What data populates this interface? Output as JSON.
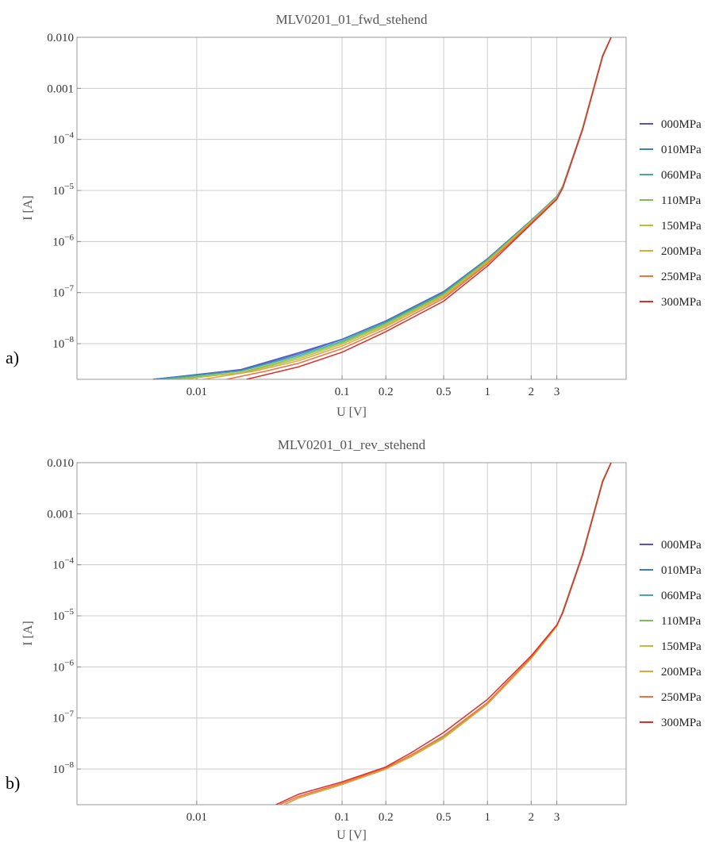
{
  "chart_data": [
    {
      "type": "line",
      "panel_label": "a)",
      "title": "MLV0201_01_fwd_stehend",
      "xlabel": "U [V]",
      "ylabel": "I [A]",
      "x_scale": "log",
      "y_scale": "log",
      "xlim": [
        0.0015,
        9
      ],
      "ylim": [
        2e-09,
        0.01
      ],
      "x_ticks": [
        {
          "value": 0.01,
          "label": "0.01"
        },
        {
          "value": 0.1,
          "label": "0.1"
        },
        {
          "value": 0.2,
          "label": "0.2"
        },
        {
          "value": 0.5,
          "label": "0.5"
        },
        {
          "value": 1,
          "label": "1"
        },
        {
          "value": 2,
          "label": "2"
        },
        {
          "value": 3,
          "label": "3"
        }
      ],
      "y_ticks": [
        {
          "value": 1e-08,
          "base": "10",
          "exp": "−8"
        },
        {
          "value": 1e-07,
          "base": "10",
          "exp": "−7"
        },
        {
          "value": 1e-06,
          "base": "10",
          "exp": "−6"
        },
        {
          "value": 1e-05,
          "base": "10",
          "exp": "−5"
        },
        {
          "value": 0.0001,
          "base": "10",
          "exp": "−4"
        },
        {
          "value": 0.001,
          "base": "0.001",
          "exp": ""
        },
        {
          "value": 0.01,
          "base": "0.010",
          "exp": ""
        }
      ],
      "grid": true,
      "legend_position": "right",
      "series": [
        {
          "name": "000MPa",
          "color": "#5b4fc9",
          "x": [
            0.005,
            0.02,
            0.05,
            0.1,
            0.2,
            0.5,
            1,
            2,
            3,
            3.3,
            4.5,
            6.2,
            7.1
          ],
          "y": [
            2e-09,
            3.1e-09,
            6.6e-09,
            1.22e-08,
            2.8e-08,
            1.05e-07,
            4.6e-07,
            2.6e-06,
            7.6e-06,
            1.22e-05,
            0.00016,
            0.0044,
            0.01
          ]
        },
        {
          "name": "010MPa",
          "color": "#3d7ebf",
          "x": [
            0.005,
            0.02,
            0.05,
            0.1,
            0.2,
            0.5,
            1,
            2,
            3,
            3.3,
            4.5,
            6.2,
            7.1
          ],
          "y": [
            2e-09,
            3e-09,
            6.2e-09,
            1.2e-08,
            2.75e-08,
            1.03e-07,
            4.55e-07,
            2.6e-06,
            7.6e-06,
            1.22e-05,
            0.00016,
            0.0044,
            0.01
          ]
        },
        {
          "name": "060MPa",
          "color": "#4aa89a",
          "x": [
            0.0055,
            0.02,
            0.05,
            0.1,
            0.2,
            0.5,
            1,
            2,
            3,
            3.3,
            4.5,
            6.2,
            7.1
          ],
          "y": [
            2e-09,
            2.9e-09,
            5.8e-09,
            1.12e-08,
            2.6e-08,
            9.8e-08,
            4.4e-07,
            2.55e-06,
            7.5e-06,
            1.2e-05,
            0.000162,
            0.0045,
            0.01
          ]
        },
        {
          "name": "110MPa",
          "color": "#7cbd5c",
          "x": [
            0.0065,
            0.02,
            0.05,
            0.1,
            0.2,
            0.5,
            1,
            2,
            3,
            3.3,
            4.5,
            6.2,
            7.1
          ],
          "y": [
            2e-09,
            2.7e-09,
            5.4e-09,
            1.05e-08,
            2.45e-08,
            9.3e-08,
            4.25e-07,
            2.5e-06,
            7.3e-06,
            1.18e-05,
            0.000158,
            0.0044,
            0.01
          ]
        },
        {
          "name": "150MPa",
          "color": "#b8bf3c",
          "x": [
            0.008,
            0.022,
            0.05,
            0.1,
            0.2,
            0.5,
            1,
            2,
            3,
            3.3,
            4.5,
            6.2,
            7.1
          ],
          "y": [
            2e-09,
            2.8e-09,
            5e-09,
            9.8e-09,
            2.3e-08,
            8.8e-08,
            4.05e-07,
            2.45e-06,
            7.2e-06,
            1.17e-05,
            0.000156,
            0.0043,
            0.01
          ]
        },
        {
          "name": "200MPa",
          "color": "#e0a63a",
          "x": [
            0.011,
            0.025,
            0.05,
            0.1,
            0.2,
            0.5,
            1,
            2,
            3,
            3.3,
            4.5,
            6.2,
            7.1
          ],
          "y": [
            2e-09,
            2.9e-09,
            4.6e-09,
            9e-09,
            2.15e-08,
            8.3e-08,
            3.85e-07,
            2.35e-06,
            7e-06,
            1.15e-05,
            0.000154,
            0.0043,
            0.01
          ]
        },
        {
          "name": "250MPa",
          "color": "#ef7040",
          "x": [
            0.016,
            0.03,
            0.05,
            0.1,
            0.2,
            0.5,
            1,
            2,
            3,
            3.3,
            4.5,
            6.2,
            7.1
          ],
          "y": [
            2e-09,
            2.9e-09,
            4.1e-09,
            8e-09,
            1.95e-08,
            7.7e-08,
            3.65e-07,
            2.3e-06,
            6.9e-06,
            1.14e-05,
            0.000153,
            0.0042,
            0.01
          ]
        },
        {
          "name": "300MPa",
          "color": "#d8302a",
          "x": [
            0.022,
            0.05,
            0.1,
            0.2,
            0.5,
            1,
            2,
            3,
            3.3,
            4.5,
            6.2,
            7.1
          ],
          "y": [
            2e-09,
            3.5e-09,
            6.8e-09,
            1.72e-08,
            6.8e-08,
            3.3e-07,
            2.2e-06,
            6.7e-06,
            1.12e-05,
            0.00015,
            0.0042,
            0.01
          ]
        }
      ]
    },
    {
      "type": "line",
      "panel_label": "b)",
      "title": "MLV0201_01_rev_stehend",
      "xlabel": "U [V]",
      "ylabel": "I [A]",
      "x_scale": "log",
      "y_scale": "log",
      "xlim": [
        0.0015,
        9
      ],
      "ylim": [
        2e-09,
        0.01
      ],
      "x_ticks": [
        {
          "value": 0.01,
          "label": "0.01"
        },
        {
          "value": 0.1,
          "label": "0.1"
        },
        {
          "value": 0.2,
          "label": "0.2"
        },
        {
          "value": 0.5,
          "label": "0.5"
        },
        {
          "value": 1,
          "label": "1"
        },
        {
          "value": 2,
          "label": "2"
        },
        {
          "value": 3,
          "label": "3"
        }
      ],
      "y_ticks": [
        {
          "value": 1e-08,
          "base": "10",
          "exp": "−8"
        },
        {
          "value": 1e-07,
          "base": "10",
          "exp": "−7"
        },
        {
          "value": 1e-06,
          "base": "10",
          "exp": "−6"
        },
        {
          "value": 1e-05,
          "base": "10",
          "exp": "−5"
        },
        {
          "value": 0.0001,
          "base": "10",
          "exp": "−4"
        },
        {
          "value": 0.001,
          "base": "0.001",
          "exp": ""
        },
        {
          "value": 0.01,
          "base": "0.010",
          "exp": ""
        }
      ],
      "grid": true,
      "legend_position": "right",
      "series": [
        {
          "name": "000MPa",
          "color": "#5b4fc9",
          "x": [
            0.04,
            0.05,
            0.1,
            0.2,
            0.3,
            0.5,
            1,
            2,
            3,
            3.3,
            4.5,
            6.2,
            7.1
          ],
          "y": [
            2e-09,
            2.7e-09,
            5e-09,
            1e-08,
            1.8e-08,
            4.2e-08,
            1.9e-07,
            1.5e-06,
            6.3e-06,
            1.22e-05,
            0.00016,
            0.0044,
            0.01
          ]
        },
        {
          "name": "010MPa",
          "color": "#3d7ebf",
          "x": [
            0.04,
            0.05,
            0.1,
            0.2,
            0.3,
            0.5,
            1,
            2,
            3,
            3.3,
            4.5,
            6.2,
            7.1
          ],
          "y": [
            2e-09,
            2.7e-09,
            5e-09,
            1e-08,
            1.8e-08,
            4.2e-08,
            1.9e-07,
            1.5e-06,
            6.3e-06,
            1.22e-05,
            0.00016,
            0.0044,
            0.01
          ]
        },
        {
          "name": "060MPa",
          "color": "#4aa89a",
          "x": [
            0.04,
            0.05,
            0.1,
            0.2,
            0.3,
            0.5,
            1,
            2,
            3,
            3.3,
            4.5,
            6.2,
            7.1
          ],
          "y": [
            2e-09,
            2.7e-09,
            5e-09,
            1e-08,
            1.8e-08,
            4.2e-08,
            1.9e-07,
            1.5e-06,
            6.3e-06,
            1.22e-05,
            0.000162,
            0.0045,
            0.01
          ]
        },
        {
          "name": "110MPa",
          "color": "#7cbd5c",
          "x": [
            0.04,
            0.05,
            0.1,
            0.2,
            0.3,
            0.5,
            1,
            2,
            3,
            3.3,
            4.5,
            6.2,
            7.1
          ],
          "y": [
            2e-09,
            2.7e-09,
            5e-09,
            1e-08,
            1.82e-08,
            4.2e-08,
            1.9e-07,
            1.5e-06,
            6.3e-06,
            1.2e-05,
            0.000158,
            0.0044,
            0.01
          ]
        },
        {
          "name": "150MPa",
          "color": "#b8bf3c",
          "x": [
            0.04,
            0.05,
            0.1,
            0.2,
            0.3,
            0.5,
            1,
            2,
            3,
            3.3,
            4.5,
            6.2,
            7.1
          ],
          "y": [
            2e-09,
            2.7e-09,
            5e-09,
            1e-08,
            1.75e-08,
            4e-08,
            1.85e-07,
            1.45e-06,
            6.2e-06,
            1.18e-05,
            0.000156,
            0.0043,
            0.01
          ]
        },
        {
          "name": "200MPa",
          "color": "#e0a63a",
          "x": [
            0.04,
            0.05,
            0.1,
            0.2,
            0.3,
            0.5,
            1,
            2,
            3,
            3.3,
            4.5,
            6.2,
            7.1
          ],
          "y": [
            2e-09,
            2.7e-09,
            5e-09,
            1e-08,
            1.8e-08,
            4.1e-08,
            1.88e-07,
            1.48e-06,
            6.3e-06,
            1.17e-05,
            0.000154,
            0.0043,
            0.01
          ]
        },
        {
          "name": "250MPa",
          "color": "#ef7040",
          "x": [
            0.037,
            0.05,
            0.1,
            0.2,
            0.3,
            0.5,
            1,
            2,
            3,
            3.3,
            4.5,
            6.2,
            7.1
          ],
          "y": [
            2e-09,
            2.9e-09,
            5.3e-09,
            1.05e-08,
            1.9e-08,
            4.5e-08,
            2e-07,
            1.55e-06,
            6.4e-06,
            1.16e-05,
            0.000153,
            0.0042,
            0.01
          ]
        },
        {
          "name": "300MPa",
          "color": "#d8302a",
          "x": [
            0.035,
            0.05,
            0.1,
            0.2,
            0.3,
            0.5,
            1,
            2,
            3,
            3.3,
            4.5,
            6.2,
            7.1
          ],
          "y": [
            2e-09,
            3.2e-09,
            5.6e-09,
            1.1e-08,
            2.1e-08,
            5.2e-08,
            2.3e-07,
            1.65e-06,
            6.6e-06,
            1.15e-05,
            0.00015,
            0.0042,
            0.01
          ]
        }
      ]
    }
  ]
}
